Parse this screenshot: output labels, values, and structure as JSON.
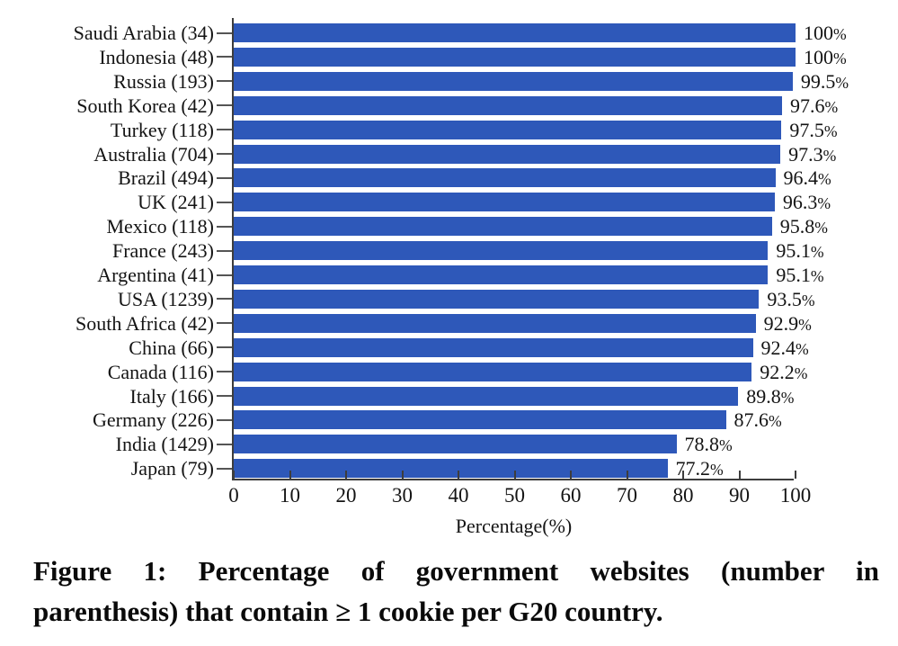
{
  "figure": {
    "caption_line1": "Figure 1: Percentage of government websites (number in",
    "caption_line2": "parenthesis) that contain ≥ 1 cookie per G20 country."
  },
  "chart_data": {
    "type": "bar",
    "orientation": "horizontal",
    "title": "",
    "xlabel": "Percentage(%)",
    "ylabel": "",
    "xlim": [
      0,
      100
    ],
    "xticks": [
      0,
      10,
      20,
      30,
      40,
      50,
      60,
      70,
      80,
      90,
      100
    ],
    "grid": false,
    "legend_position": "none",
    "bar_color": "#2e58b9",
    "axis_color": "#3d3d3d",
    "text_color": "#141414",
    "categories": [
      "Saudi Arabia (34)",
      "Indonesia (48)",
      "Russia (193)",
      "South Korea (42)",
      "Turkey (118)",
      "Australia (704)",
      "Brazil (494)",
      "UK (241)",
      "Mexico (118)",
      "France (243)",
      "Argentina (41)",
      "USA (1239)",
      "South Africa (42)",
      "China (66)",
      "Canada (116)",
      "Italy (166)",
      "Germany (226)",
      "India (1429)",
      "Japan (79)"
    ],
    "countries": [
      "Saudi Arabia",
      "Indonesia",
      "Russia",
      "South Korea",
      "Turkey",
      "Australia",
      "Brazil",
      "UK",
      "Mexico",
      "France",
      "Argentina",
      "USA",
      "South Africa",
      "China",
      "Canada",
      "Italy",
      "Germany",
      "India",
      "Japan"
    ],
    "site_counts": [
      34,
      48,
      193,
      42,
      118,
      704,
      494,
      241,
      118,
      243,
      41,
      1239,
      42,
      66,
      116,
      166,
      226,
      1429,
      79
    ],
    "values": [
      100,
      100,
      99.5,
      97.6,
      97.5,
      97.3,
      96.4,
      96.3,
      95.8,
      95.1,
      95.1,
      93.5,
      92.9,
      92.4,
      92.2,
      89.8,
      87.6,
      78.8,
      77.2
    ],
    "value_labels": [
      "100%",
      "100%",
      "99.5%",
      "97.6%",
      "97.5%",
      "97.3%",
      "96.4%",
      "96.3%",
      "95.8%",
      "95.1%",
      "95.1%",
      "93.5%",
      "92.9%",
      "92.4%",
      "92.2%",
      "89.8%",
      "87.6%",
      "78.8%",
      "77.2%"
    ]
  }
}
